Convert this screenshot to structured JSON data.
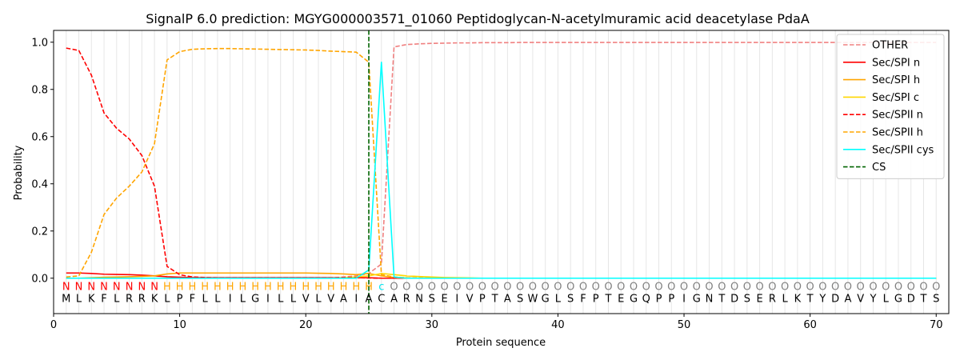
{
  "chart_data": {
    "type": "line",
    "title": "SignalP 6.0 prediction: MGYG000003571_01060 Peptidoglycan-N-acetylmuramic acid deacetylase PdaA",
    "xlabel": "Protein sequence",
    "ylabel": "Probability",
    "xlim": [
      0,
      71
    ],
    "ylim": [
      -0.15,
      1.05
    ],
    "xticks": [
      0,
      10,
      20,
      30,
      40,
      50,
      60,
      70
    ],
    "yticks": [
      0.0,
      0.2,
      0.4,
      0.6,
      0.8,
      1.0
    ],
    "ytick_labels": [
      "0.0",
      "0.2",
      "0.4",
      "0.6",
      "0.8",
      "1.0"
    ],
    "vertical_grid": true,
    "legend_position": "top-right",
    "sequence": [
      "M",
      "L",
      "K",
      "F",
      "L",
      "R",
      "R",
      "K",
      "L",
      "P",
      "F",
      "L",
      "L",
      "I",
      "L",
      "G",
      "I",
      "L",
      "L",
      "V",
      "L",
      "V",
      "A",
      "I",
      "A",
      "C",
      "A",
      "R",
      "N",
      "S",
      "E",
      "I",
      "V",
      "P",
      "T",
      "A",
      "S",
      "W",
      "G",
      "L",
      "S",
      "F",
      "P",
      "T",
      "E",
      "G",
      "Q",
      "P",
      "P",
      "I",
      "G",
      "N",
      "T",
      "D",
      "S",
      "E",
      "R",
      "L",
      "K",
      "T",
      "Y",
      "D",
      "A",
      "V",
      "Y",
      "L",
      "G",
      "D",
      "T",
      "S"
    ],
    "prediction": [
      "N",
      "N",
      "N",
      "N",
      "N",
      "N",
      "N",
      "N",
      "H",
      "H",
      "H",
      "H",
      "H",
      "H",
      "H",
      "H",
      "H",
      "H",
      "H",
      "H",
      "H",
      "H",
      "H",
      "H",
      "H",
      "c",
      "O",
      "O",
      "O",
      "O",
      "O",
      "O",
      "O",
      "O",
      "O",
      "O",
      "O",
      "O",
      "O",
      "O",
      "O",
      "O",
      "O",
      "O",
      "O",
      "O",
      "O",
      "O",
      "O",
      "O",
      "O",
      "O",
      "O",
      "O",
      "O",
      "O",
      "O",
      "O",
      "O",
      "O",
      "O",
      "O",
      "O",
      "O",
      "O",
      "O",
      "O",
      "O",
      "O",
      "O"
    ],
    "prediction_colors": {
      "N": "#ff0000",
      "H": "#ffa500",
      "c": "#00e5ee",
      "O": "#808080"
    },
    "cs_position": 25,
    "cs_color": "#006400",
    "series": [
      {
        "name": "OTHER",
        "color": "#f08080",
        "dash": "dashed",
        "values": [
          0.0,
          0.0,
          0.0,
          0.0,
          0.0,
          0.0,
          0.0,
          0.0,
          0.0,
          0.0,
          0.0,
          0.0,
          0.0,
          0.0,
          0.0,
          0.0,
          0.0,
          0.0,
          0.0,
          0.0,
          0.0,
          0.0,
          0.005,
          0.01,
          0.02,
          0.06,
          0.98,
          0.99,
          0.993,
          0.995,
          0.996,
          0.997,
          0.997,
          0.998,
          0.998,
          0.998,
          0.999,
          0.999,
          0.999,
          0.999,
          0.999,
          0.999,
          0.999,
          0.999,
          0.999,
          0.999,
          0.999,
          0.999,
          0.999,
          0.999,
          0.999,
          0.999,
          0.999,
          0.999,
          0.999,
          0.999,
          0.999,
          0.999,
          0.999,
          0.999,
          0.999,
          0.999,
          0.999,
          0.999,
          0.999,
          0.999,
          0.999,
          0.999,
          0.999,
          0.999
        ]
      },
      {
        "name": "Sec/SPI n",
        "color": "#ff0000",
        "dash": "solid",
        "values": [
          0.022,
          0.022,
          0.02,
          0.017,
          0.016,
          0.015,
          0.013,
          0.01,
          0.006,
          0.004,
          0.003,
          0.002,
          0.002,
          0.002,
          0.002,
          0.002,
          0.002,
          0.002,
          0.002,
          0.002,
          0.002,
          0.002,
          0.002,
          0.002,
          0.002,
          0.0,
          0.0,
          0.0,
          0.0,
          0.0,
          0.0,
          0.0,
          0.0,
          0.0,
          0.0,
          0.0,
          0.0,
          0.0,
          0.0,
          0.0,
          0.0,
          0.0,
          0.0,
          0.0,
          0.0,
          0.0,
          0.0,
          0.0,
          0.0,
          0.0,
          0.0,
          0.0,
          0.0,
          0.0,
          0.0,
          0.0,
          0.0,
          0.0,
          0.0,
          0.0,
          0.0,
          0.0,
          0.0,
          0.0,
          0.0,
          0.0,
          0.0,
          0.0,
          0.0,
          0.0
        ]
      },
      {
        "name": "Sec/SPI h",
        "color": "#ffa500",
        "dash": "solid",
        "values": [
          0.0,
          0.0,
          0.002,
          0.004,
          0.005,
          0.006,
          0.008,
          0.01,
          0.018,
          0.022,
          0.022,
          0.022,
          0.022,
          0.022,
          0.022,
          0.022,
          0.022,
          0.022,
          0.022,
          0.022,
          0.021,
          0.02,
          0.018,
          0.015,
          0.02,
          0.01,
          0.003,
          0.001,
          0.0,
          0.0,
          0.0,
          0.0,
          0.0,
          0.0,
          0.0,
          0.0,
          0.0,
          0.0,
          0.0,
          0.0,
          0.0,
          0.0,
          0.0,
          0.0,
          0.0,
          0.0,
          0.0,
          0.0,
          0.0,
          0.0,
          0.0,
          0.0,
          0.0,
          0.0,
          0.0,
          0.0,
          0.0,
          0.0,
          0.0,
          0.0,
          0.0,
          0.0,
          0.0,
          0.0,
          0.0,
          0.0,
          0.0,
          0.0,
          0.0,
          0.0
        ]
      },
      {
        "name": "Sec/SPI c",
        "color": "#ffd700",
        "dash": "solid",
        "values": [
          0.0,
          0.0,
          0.0,
          0.0,
          0.0,
          0.0,
          0.0,
          0.0,
          0.0,
          0.0,
          0.0,
          0.0,
          0.0,
          0.0,
          0.0,
          0.0,
          0.0,
          0.0,
          0.0,
          0.0,
          0.0,
          0.0,
          0.002,
          0.005,
          0.01,
          0.02,
          0.015,
          0.01,
          0.007,
          0.005,
          0.003,
          0.002,
          0.001,
          0.0,
          0.0,
          0.0,
          0.0,
          0.0,
          0.0,
          0.0,
          0.0,
          0.0,
          0.0,
          0.0,
          0.0,
          0.0,
          0.0,
          0.0,
          0.0,
          0.0,
          0.0,
          0.0,
          0.0,
          0.0,
          0.0,
          0.0,
          0.0,
          0.0,
          0.0,
          0.0,
          0.0,
          0.0,
          0.0,
          0.0,
          0.0,
          0.0,
          0.0,
          0.0,
          0.0,
          0.0
        ]
      },
      {
        "name": "Sec/SPII n",
        "color": "#ff0000",
        "dash": "dashed",
        "values": [
          0.975,
          0.965,
          0.86,
          0.7,
          0.635,
          0.59,
          0.52,
          0.39,
          0.05,
          0.015,
          0.005,
          0.003,
          0.002,
          0.002,
          0.002,
          0.002,
          0.002,
          0.002,
          0.002,
          0.002,
          0.002,
          0.002,
          0.002,
          0.002,
          0.001,
          0.0,
          0.0,
          0.0,
          0.0,
          0.0,
          0.0,
          0.0,
          0.0,
          0.0,
          0.0,
          0.0,
          0.0,
          0.0,
          0.0,
          0.0,
          0.0,
          0.0,
          0.0,
          0.0,
          0.0,
          0.0,
          0.0,
          0.0,
          0.0,
          0.0,
          0.0,
          0.0,
          0.0,
          0.0,
          0.0,
          0.0,
          0.0,
          0.0,
          0.0,
          0.0,
          0.0,
          0.0,
          0.0,
          0.0,
          0.0,
          0.0,
          0.0,
          0.0,
          0.0,
          0.0
        ]
      },
      {
        "name": "Sec/SPII h",
        "color": "#ffa500",
        "dash": "dashed",
        "values": [
          0.005,
          0.01,
          0.11,
          0.27,
          0.34,
          0.39,
          0.45,
          0.57,
          0.925,
          0.96,
          0.97,
          0.972,
          0.973,
          0.973,
          0.972,
          0.971,
          0.97,
          0.969,
          0.968,
          0.967,
          0.965,
          0.962,
          0.96,
          0.958,
          0.915,
          0.015,
          0.005,
          0.002,
          0.001,
          0.0,
          0.0,
          0.0,
          0.0,
          0.0,
          0.0,
          0.0,
          0.0,
          0.0,
          0.0,
          0.0,
          0.0,
          0.0,
          0.0,
          0.0,
          0.0,
          0.0,
          0.0,
          0.0,
          0.0,
          0.0,
          0.0,
          0.0,
          0.0,
          0.0,
          0.0,
          0.0,
          0.0,
          0.0,
          0.0,
          0.0,
          0.0,
          0.0,
          0.0,
          0.0,
          0.0,
          0.0,
          0.0,
          0.0,
          0.0,
          0.0
        ]
      },
      {
        "name": "Sec/SPII cys",
        "color": "#00ffff",
        "dash": "solid",
        "values": [
          0.0,
          0.0,
          0.0,
          0.0,
          0.0,
          0.0,
          0.0,
          0.0,
          0.0,
          0.0,
          0.0,
          0.0,
          0.0,
          0.0,
          0.0,
          0.0,
          0.0,
          0.0,
          0.0,
          0.0,
          0.0,
          0.0,
          0.0,
          0.0,
          0.035,
          0.915,
          0.005,
          0.0,
          0.0,
          0.0,
          0.0,
          0.0,
          0.0,
          0.0,
          0.0,
          0.0,
          0.0,
          0.0,
          0.0,
          0.0,
          0.0,
          0.0,
          0.0,
          0.0,
          0.0,
          0.0,
          0.0,
          0.0,
          0.0,
          0.0,
          0.0,
          0.0,
          0.0,
          0.0,
          0.0,
          0.0,
          0.0,
          0.0,
          0.0,
          0.0,
          0.0,
          0.0,
          0.0,
          0.0,
          0.0,
          0.0,
          0.0,
          0.0,
          0.0,
          0.0
        ]
      }
    ],
    "legend": [
      {
        "name": "OTHER",
        "color": "#f08080",
        "dash": "dashed"
      },
      {
        "name": "Sec/SPI n",
        "color": "#ff0000",
        "dash": "solid"
      },
      {
        "name": "Sec/SPI h",
        "color": "#ffa500",
        "dash": "solid"
      },
      {
        "name": "Sec/SPI c",
        "color": "#ffd700",
        "dash": "solid"
      },
      {
        "name": "Sec/SPII n",
        "color": "#ff0000",
        "dash": "dashed"
      },
      {
        "name": "Sec/SPII h",
        "color": "#ffa500",
        "dash": "dashed"
      },
      {
        "name": "Sec/SPII cys",
        "color": "#00ffff",
        "dash": "solid"
      },
      {
        "name": "CS",
        "color": "#006400",
        "dash": "dashed"
      }
    ]
  }
}
